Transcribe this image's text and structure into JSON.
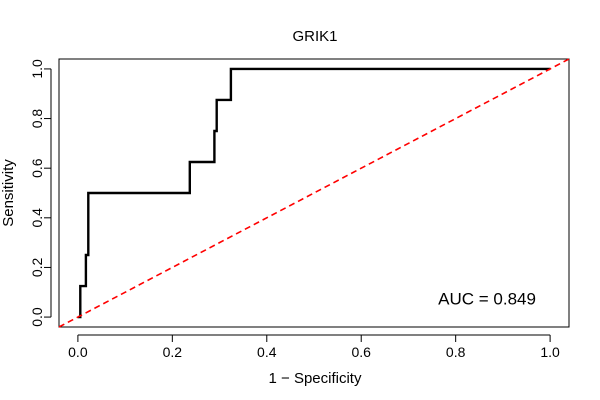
{
  "chart_data": {
    "type": "line",
    "title": "GRIK1",
    "xlabel": "1 − Specificity",
    "ylabel": "Sensitivity",
    "xlim": [
      -0.04,
      1.04
    ],
    "ylim": [
      -0.04,
      1.04
    ],
    "x_ticks": [
      0.0,
      0.2,
      0.4,
      0.6,
      0.8,
      1.0
    ],
    "x_tick_labels": [
      "0.0",
      "0.2",
      "0.4",
      "0.6",
      "0.8",
      "1.0"
    ],
    "y_ticks": [
      0.0,
      0.2,
      0.4,
      0.6,
      0.8,
      1.0
    ],
    "y_tick_labels": [
      "0.0",
      "0.2",
      "0.4",
      "0.6",
      "0.8",
      "1.0"
    ],
    "grid": false,
    "series": [
      {
        "color": "#000000",
        "style": "solid",
        "points": [
          [
            0.0,
            0.0
          ],
          [
            0.005,
            0.0
          ],
          [
            0.005,
            0.125
          ],
          [
            0.017,
            0.125
          ],
          [
            0.017,
            0.25
          ],
          [
            0.022,
            0.25
          ],
          [
            0.022,
            0.5
          ],
          [
            0.237,
            0.5
          ],
          [
            0.237,
            0.625
          ],
          [
            0.289,
            0.625
          ],
          [
            0.289,
            0.75
          ],
          [
            0.294,
            0.75
          ],
          [
            0.294,
            0.875
          ],
          [
            0.324,
            0.875
          ],
          [
            0.324,
            1.0
          ],
          [
            1.0,
            1.0
          ]
        ]
      },
      {
        "color": "#ff0000",
        "style": "dashed",
        "points": [
          [
            -0.04,
            -0.04
          ],
          [
            1.04,
            1.04
          ]
        ]
      }
    ],
    "annotations": [
      {
        "text": "AUC = 0.849",
        "x": 0.97,
        "y": 0.05
      }
    ]
  }
}
